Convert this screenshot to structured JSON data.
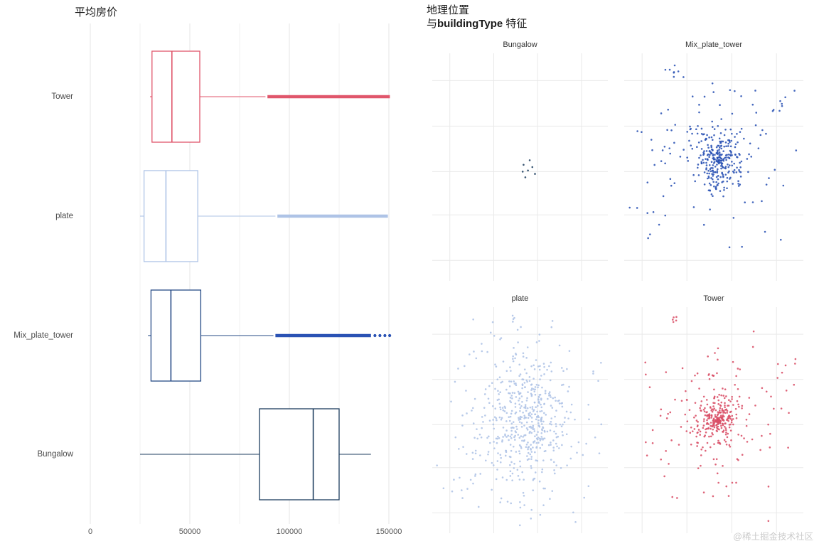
{
  "left_chart": {
    "title": "平均房价"
  },
  "right_chart": {
    "title_line1": "地理位置",
    "title_prefix": "与",
    "title_bold": "buildingType",
    "title_suffix": " 特征"
  },
  "watermark": "@稀土掘金技术社区",
  "chart_data": [
    {
      "type": "boxplot",
      "title": "平均房价",
      "orientation": "horizontal",
      "xlabel": "",
      "ylabel": "",
      "grid": true,
      "xlim": [
        -4000,
        155000
      ],
      "x_ticks": [
        0,
        50000,
        100000,
        150000
      ],
      "x_tick_labels": [
        "0",
        "50000",
        "100000",
        "150000"
      ],
      "categories": [
        "Tower",
        "plate",
        "Mix_plate_tower",
        "Bungalow"
      ],
      "series": [
        {
          "name": "Tower",
          "color": "#e0566b",
          "stroke_color": "#e0566b",
          "whisker_low": 30000,
          "q1": 31000,
          "median": 41000,
          "q3": 55000,
          "whisker_high": 88000,
          "outlier_band": [
            89000,
            150500
          ],
          "outlier_dots": []
        },
        {
          "name": "plate",
          "color": "#aec3e6",
          "stroke_color": "#aec3e6",
          "whisker_low": 25000,
          "q1": 27000,
          "median": 38000,
          "q3": 54000,
          "whisker_high": 93000,
          "outlier_band": [
            94000,
            149500
          ],
          "outlier_dots": []
        },
        {
          "name": "Mix_plate_tower",
          "color": "#2a52b4",
          "stroke_color": "#264a86",
          "whisker_low": 29000,
          "q1": 30500,
          "median": 40500,
          "q3": 55500,
          "whisker_high": 92000,
          "outlier_band": [
            93000,
            141000
          ],
          "outlier_dots": [
            143000,
            145500,
            148000,
            150400
          ]
        },
        {
          "name": "Bungalow",
          "color": "#1d3d5f",
          "stroke_color": "#1d3d5f",
          "whisker_low": 25000,
          "q1": 85000,
          "median": 112000,
          "q3": 125000,
          "whisker_high": 141000,
          "outlier_band": null,
          "outlier_dots": []
        }
      ]
    },
    {
      "type": "scatter",
      "title": "地理位置 与buildingType 特征",
      "legend": false,
      "grid": true,
      "facets": [
        {
          "name": "Bungalow",
          "color": "#1d3d5f",
          "seed": 11,
          "points": [
            [
              0.52,
              0.49
            ],
            [
              0.545,
              0.515
            ],
            [
              0.57,
              0.5
            ],
            [
              0.53,
              0.545
            ],
            [
              0.555,
              0.47
            ],
            [
              0.585,
              0.53
            ],
            [
              0.515,
              0.52
            ]
          ],
          "clusters": []
        },
        {
          "name": "Mix_plate_tower",
          "color": "#2a52b4",
          "seed": 101,
          "points": [],
          "clusters": [
            {
              "ring": 0.08,
              "cx": 0.53,
              "cy": 0.47,
              "sx": 0.045,
              "sy": 0.045,
              "n": 220
            },
            {
              "cx": 0.5,
              "cy": 0.42,
              "sx": 0.16,
              "sy": 0.13,
              "n": 90
            },
            {
              "cx": 0.55,
              "cy": 0.55,
              "sx": 0.24,
              "sy": 0.18,
              "n": 50
            },
            {
              "cx": 0.27,
              "cy": 0.09,
              "sx": 0.025,
              "sy": 0.03,
              "n": 8
            },
            {
              "cx": 0.87,
              "cy": 0.22,
              "sx": 0.03,
              "sy": 0.03,
              "n": 6
            },
            {
              "cx": 0.15,
              "cy": 0.75,
              "sx": 0.05,
              "sy": 0.05,
              "n": 6
            }
          ]
        },
        {
          "name": "plate",
          "color": "#aec3e6",
          "seed": 202,
          "points": [],
          "clusters": [
            {
              "cx": 0.54,
              "cy": 0.5,
              "sx": 0.105,
              "sy": 0.125,
              "n": 330
            },
            {
              "cx": 0.5,
              "cy": 0.56,
              "sx": 0.18,
              "sy": 0.17,
              "n": 170
            },
            {
              "cx": 0.56,
              "cy": 0.42,
              "sx": 0.3,
              "sy": 0.25,
              "n": 70
            },
            {
              "cx": 0.16,
              "cy": 0.73,
              "sx": 0.05,
              "sy": 0.07,
              "n": 10
            },
            {
              "cx": 0.45,
              "cy": 0.1,
              "sx": 0.06,
              "sy": 0.04,
              "n": 7
            }
          ]
        },
        {
          "name": "Tower",
          "color": "#d94f66",
          "seed": 303,
          "points": [],
          "clusters": [
            {
              "ring": 0.05,
              "cx": 0.52,
              "cy": 0.5,
              "sx": 0.05,
              "sy": 0.05,
              "n": 230
            },
            {
              "cx": 0.5,
              "cy": 0.52,
              "sx": 0.15,
              "sy": 0.14,
              "n": 110
            },
            {
              "cx": 0.56,
              "cy": 0.44,
              "sx": 0.27,
              "sy": 0.22,
              "n": 50
            },
            {
              "cx": 0.28,
              "cy": 0.05,
              "sx": 0.02,
              "sy": 0.025,
              "n": 6
            },
            {
              "cx": 0.9,
              "cy": 0.3,
              "sx": 0.03,
              "sy": 0.04,
              "n": 5
            }
          ]
        }
      ]
    }
  ]
}
